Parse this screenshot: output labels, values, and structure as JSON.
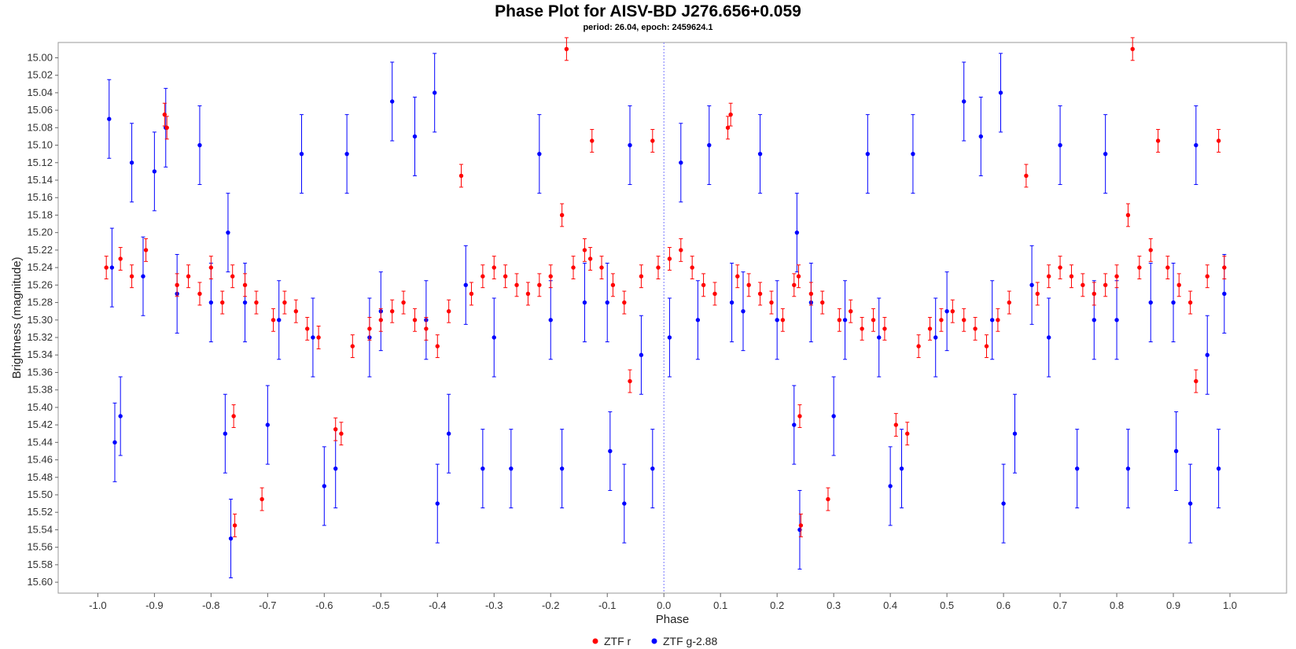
{
  "chart_data": {
    "type": "scatter",
    "title": "Phase Plot for AISV-BD J276.656+0.059",
    "subtitle": "period: 26.04, epoch: 2459624.1",
    "xlabel": "Phase",
    "ylabel": "Brightness (magnitude)",
    "xlim": [
      -1.07,
      1.1
    ],
    "ylim": [
      15.6125,
      14.9825
    ],
    "y_inverted": true,
    "x_ticks": [
      "-1.0",
      "-0.9",
      "-0.8",
      "-0.7",
      "-0.6",
      "-0.5",
      "-0.4",
      "-0.3",
      "-0.2",
      "-0.1",
      "0.0",
      "0.1",
      "0.2",
      "0.3",
      "0.4",
      "0.5",
      "0.6",
      "0.7",
      "0.8",
      "0.9",
      "1.0"
    ],
    "y_ticks": [
      "15.00",
      "15.02",
      "15.04",
      "15.06",
      "15.08",
      "15.10",
      "15.12",
      "15.14",
      "15.16",
      "15.18",
      "15.20",
      "15.22",
      "15.24",
      "15.26",
      "15.28",
      "15.30",
      "15.32",
      "15.34",
      "15.36",
      "15.38",
      "15.40",
      "15.42",
      "15.44",
      "15.46",
      "15.48",
      "15.50",
      "15.52",
      "15.54",
      "15.56",
      "15.58",
      "15.60"
    ],
    "reference_line_x": 0.0,
    "legend_position": "bottom",
    "series": [
      {
        "name": "ZTF r",
        "color": "#ff0000",
        "error_bar": 0.013,
        "points": [
          [
            -0.985,
            15.24
          ],
          [
            -0.96,
            15.23
          ],
          [
            -0.94,
            15.25
          ],
          [
            -0.915,
            15.22
          ],
          [
            -0.882,
            15.065
          ],
          [
            -0.878,
            15.08
          ],
          [
            -0.86,
            15.26
          ],
          [
            -0.84,
            15.25
          ],
          [
            -0.82,
            15.27
          ],
          [
            -0.8,
            15.24
          ],
          [
            -0.78,
            15.28
          ],
          [
            -0.762,
            15.25
          ],
          [
            -0.76,
            15.41
          ],
          [
            -0.758,
            15.535
          ],
          [
            -0.74,
            15.26
          ],
          [
            -0.72,
            15.28
          ],
          [
            -0.71,
            15.505
          ],
          [
            -0.69,
            15.3
          ],
          [
            -0.67,
            15.28
          ],
          [
            -0.65,
            15.29
          ],
          [
            -0.63,
            15.31
          ],
          [
            -0.61,
            15.32
          ],
          [
            -0.58,
            15.425
          ],
          [
            -0.57,
            15.43
          ],
          [
            -0.55,
            15.33
          ],
          [
            -0.52,
            15.31
          ],
          [
            -0.5,
            15.3
          ],
          [
            -0.48,
            15.29
          ],
          [
            -0.46,
            15.28
          ],
          [
            -0.44,
            15.3
          ],
          [
            -0.42,
            15.31
          ],
          [
            -0.4,
            15.33
          ],
          [
            -0.38,
            15.29
          ],
          [
            -0.358,
            15.135
          ],
          [
            -0.34,
            15.27
          ],
          [
            -0.32,
            15.25
          ],
          [
            -0.3,
            15.24
          ],
          [
            -0.28,
            15.25
          ],
          [
            -0.26,
            15.26
          ],
          [
            -0.24,
            15.27
          ],
          [
            -0.22,
            15.26
          ],
          [
            -0.2,
            15.25
          ],
          [
            -0.18,
            15.18
          ],
          [
            -0.172,
            14.99
          ],
          [
            -0.16,
            15.24
          ],
          [
            -0.14,
            15.22
          ],
          [
            -0.13,
            15.23
          ],
          [
            -0.127,
            15.095
          ],
          [
            -0.11,
            15.24
          ],
          [
            -0.09,
            15.26
          ],
          [
            -0.07,
            15.28
          ],
          [
            -0.06,
            15.37
          ],
          [
            -0.04,
            15.25
          ],
          [
            -0.02,
            15.095
          ],
          [
            -0.01,
            15.24
          ],
          [
            0.01,
            15.23
          ],
          [
            0.03,
            15.22
          ],
          [
            0.05,
            15.24
          ],
          [
            0.07,
            15.26
          ],
          [
            0.09,
            15.27
          ],
          [
            0.113,
            15.08
          ],
          [
            0.118,
            15.065
          ],
          [
            0.13,
            15.25
          ],
          [
            0.15,
            15.26
          ],
          [
            0.17,
            15.27
          ],
          [
            0.19,
            15.28
          ],
          [
            0.21,
            15.3
          ],
          [
            0.23,
            15.26
          ],
          [
            0.238,
            15.25
          ],
          [
            0.24,
            15.41
          ],
          [
            0.242,
            15.535
          ],
          [
            0.26,
            15.27
          ],
          [
            0.28,
            15.28
          ],
          [
            0.29,
            15.505
          ],
          [
            0.31,
            15.3
          ],
          [
            0.33,
            15.29
          ],
          [
            0.35,
            15.31
          ],
          [
            0.37,
            15.3
          ],
          [
            0.39,
            15.31
          ],
          [
            0.41,
            15.42
          ],
          [
            0.43,
            15.43
          ],
          [
            0.45,
            15.33
          ],
          [
            0.47,
            15.31
          ],
          [
            0.49,
            15.3
          ],
          [
            0.51,
            15.29
          ],
          [
            0.53,
            15.3
          ],
          [
            0.55,
            15.31
          ],
          [
            0.57,
            15.33
          ],
          [
            0.59,
            15.3
          ],
          [
            0.61,
            15.28
          ],
          [
            0.64,
            15.135
          ],
          [
            0.66,
            15.27
          ],
          [
            0.68,
            15.25
          ],
          [
            0.7,
            15.24
          ],
          [
            0.72,
            15.25
          ],
          [
            0.74,
            15.26
          ],
          [
            0.76,
            15.27
          ],
          [
            0.78,
            15.26
          ],
          [
            0.8,
            15.25
          ],
          [
            0.82,
            15.18
          ],
          [
            0.828,
            14.99
          ],
          [
            0.84,
            15.24
          ],
          [
            0.86,
            15.22
          ],
          [
            0.873,
            15.095
          ],
          [
            0.89,
            15.24
          ],
          [
            0.91,
            15.26
          ],
          [
            0.93,
            15.28
          ],
          [
            0.94,
            15.37
          ],
          [
            0.96,
            15.25
          ],
          [
            0.98,
            15.095
          ],
          [
            0.99,
            15.24
          ]
        ]
      },
      {
        "name": "ZTF g-2.88",
        "color": "#0000ff",
        "error_bar": 0.045,
        "points": [
          [
            -0.98,
            15.07
          ],
          [
            -0.975,
            15.24
          ],
          [
            -0.97,
            15.44
          ],
          [
            -0.96,
            15.41
          ],
          [
            -0.94,
            15.12
          ],
          [
            -0.92,
            15.25
          ],
          [
            -0.9,
            15.13
          ],
          [
            -0.88,
            15.08
          ],
          [
            -0.86,
            15.27
          ],
          [
            -0.82,
            15.1
          ],
          [
            -0.8,
            15.28
          ],
          [
            -0.775,
            15.43
          ],
          [
            -0.77,
            15.2
          ],
          [
            -0.765,
            15.55
          ],
          [
            -0.74,
            15.28
          ],
          [
            -0.7,
            15.42
          ],
          [
            -0.68,
            15.3
          ],
          [
            -0.64,
            15.11
          ],
          [
            -0.62,
            15.32
          ],
          [
            -0.6,
            15.49
          ],
          [
            -0.58,
            15.47
          ],
          [
            -0.56,
            15.11
          ],
          [
            -0.52,
            15.32
          ],
          [
            -0.5,
            15.29
          ],
          [
            -0.48,
            15.05
          ],
          [
            -0.44,
            15.09
          ],
          [
            -0.42,
            15.3
          ],
          [
            -0.405,
            15.04
          ],
          [
            -0.4,
            15.51
          ],
          [
            -0.38,
            15.43
          ],
          [
            -0.35,
            15.26
          ],
          [
            -0.32,
            15.47
          ],
          [
            -0.3,
            15.32
          ],
          [
            -0.27,
            15.47
          ],
          [
            -0.22,
            15.11
          ],
          [
            -0.2,
            15.3
          ],
          [
            -0.18,
            15.47
          ],
          [
            -0.14,
            15.28
          ],
          [
            -0.1,
            15.28
          ],
          [
            -0.095,
            15.45
          ],
          [
            -0.07,
            15.51
          ],
          [
            -0.06,
            15.1
          ],
          [
            -0.04,
            15.34
          ],
          [
            -0.02,
            15.47
          ],
          [
            0.01,
            15.32
          ],
          [
            0.03,
            15.12
          ],
          [
            0.06,
            15.3
          ],
          [
            0.08,
            15.1
          ],
          [
            0.12,
            15.28
          ],
          [
            0.14,
            15.29
          ],
          [
            0.17,
            15.11
          ],
          [
            0.2,
            15.3
          ],
          [
            0.23,
            15.42
          ],
          [
            0.235,
            15.2
          ],
          [
            0.24,
            15.54
          ],
          [
            0.26,
            15.28
          ],
          [
            0.3,
            15.41
          ],
          [
            0.32,
            15.3
          ],
          [
            0.36,
            15.11
          ],
          [
            0.38,
            15.32
          ],
          [
            0.4,
            15.49
          ],
          [
            0.42,
            15.47
          ],
          [
            0.44,
            15.11
          ],
          [
            0.48,
            15.32
          ],
          [
            0.5,
            15.29
          ],
          [
            0.53,
            15.05
          ],
          [
            0.56,
            15.09
          ],
          [
            0.58,
            15.3
          ],
          [
            0.595,
            15.04
          ],
          [
            0.6,
            15.51
          ],
          [
            0.62,
            15.43
          ],
          [
            0.65,
            15.26
          ],
          [
            0.68,
            15.32
          ],
          [
            0.7,
            15.1
          ],
          [
            0.73,
            15.47
          ],
          [
            0.76,
            15.3
          ],
          [
            0.78,
            15.11
          ],
          [
            0.8,
            15.3
          ],
          [
            0.82,
            15.47
          ],
          [
            0.86,
            15.28
          ],
          [
            0.9,
            15.28
          ],
          [
            0.905,
            15.45
          ],
          [
            0.93,
            15.51
          ],
          [
            0.94,
            15.1
          ],
          [
            0.96,
            15.34
          ],
          [
            0.98,
            15.47
          ],
          [
            0.99,
            15.27
          ]
        ]
      }
    ]
  }
}
